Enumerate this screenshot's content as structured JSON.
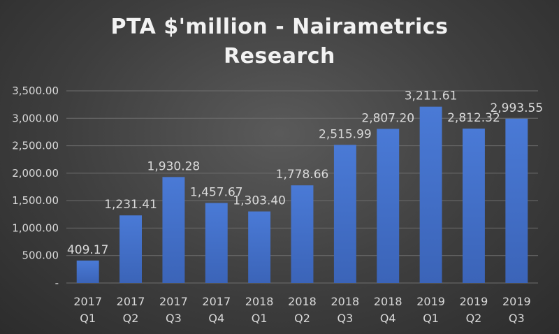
{
  "chart_data": {
    "type": "bar",
    "title": "PTA $'million - Nairametrics\nResearch",
    "xlabel": "",
    "ylabel": "",
    "categories": [
      [
        "2017",
        "Q1"
      ],
      [
        "2017",
        "Q2"
      ],
      [
        "2017",
        "Q3"
      ],
      [
        "2017",
        "Q4"
      ],
      [
        "2018",
        "Q1"
      ],
      [
        "2018",
        "Q2"
      ],
      [
        "2018",
        "Q3"
      ],
      [
        "2018",
        "Q4"
      ],
      [
        "2019",
        "Q1"
      ],
      [
        "2019",
        "Q2"
      ],
      [
        "2019",
        "Q3"
      ]
    ],
    "values": [
      409.17,
      1231.41,
      1930.28,
      1457.67,
      1303.4,
      1778.66,
      2515.99,
      2807.2,
      3211.61,
      2812.32,
      2993.55
    ],
    "value_labels": [
      "409.17",
      "1,231.41",
      "1,930.28",
      "1,457.67",
      "1,303.40",
      "1,778.66",
      "2,515.99",
      "2,807.20",
      "3,211.61",
      "2,812.32",
      "2,993.55"
    ],
    "ylim": [
      0,
      3500
    ],
    "yticks": [
      0,
      500,
      1000,
      1500,
      2000,
      2500,
      3000,
      3500
    ],
    "ytick_labels": [
      "-",
      "500.00",
      "1,000.00",
      "1,500.00",
      "2,000.00",
      "2,500.00",
      "3,000.00",
      "3,500.00"
    ],
    "grid": true,
    "legend": "none",
    "bar_color": "#4472c4"
  }
}
